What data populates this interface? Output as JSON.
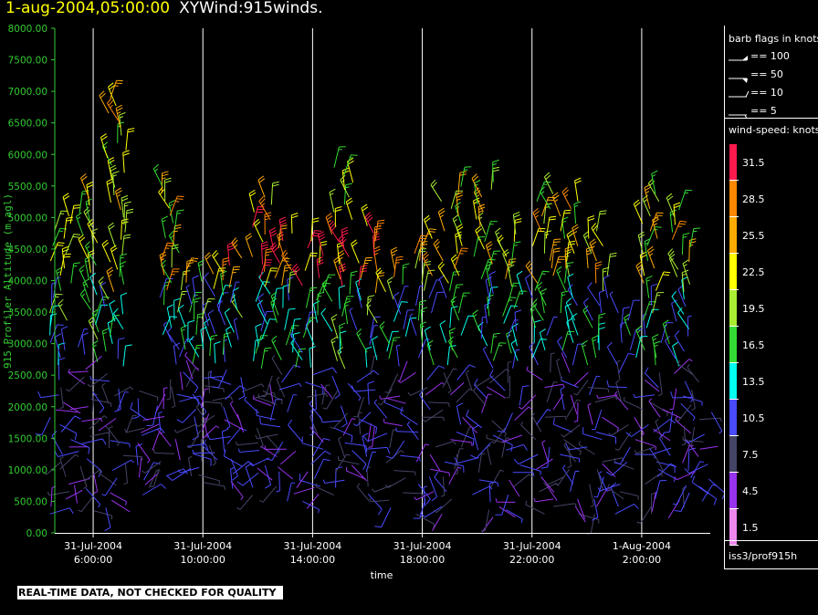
{
  "title": {
    "date": "1-aug-2004,05:00:00",
    "name": "XYWind:915winds."
  },
  "footnote": "REAL-TIME DATA, NOT CHECKED FOR QUALITY",
  "legend": {
    "barb_title": "barb flags in knots",
    "barb_items": [
      "== 100",
      "== 50",
      "== 10",
      "== 5"
    ],
    "speed_title": "wind-speed: knots",
    "speed_labels": [
      "31.5",
      "28.5",
      "25.5",
      "22.5",
      "19.5",
      "16.5",
      "13.5",
      "10.5",
      "7.5",
      "4.5",
      "1.5"
    ],
    "colors": [
      "#ff1a4d",
      "#ff8800",
      "#ffaa00",
      "#ffff00",
      "#aaee33",
      "#33dd33",
      "#00ffee",
      "#4a4aff",
      "#444466",
      "#9933ee",
      "#ee88ee"
    ],
    "source": "iss3/prof915h"
  },
  "chart_data": {
    "type": "scatter",
    "title": "XYWind:915winds.",
    "xlabel": "time",
    "ylabel": "915 Profiler Altitude (m agl)",
    "ylim": [
      0,
      8000
    ],
    "yticks": [
      "0.00",
      "500.00",
      "1000.00",
      "1500.00",
      "2000.00",
      "2500.00",
      "3000.00",
      "3500.00",
      "4000.00",
      "4500.00",
      "5000.00",
      "5500.00",
      "6000.00",
      "6500.00",
      "7000.00",
      "7500.00",
      "8000.00"
    ],
    "xlim_hours": [
      4.6,
      28.5
    ],
    "xticks": [
      {
        "hour": 6,
        "date": "31-Jul-2004",
        "time": "6:00:00"
      },
      {
        "hour": 10,
        "date": "31-Jul-2004",
        "time": "10:00:00"
      },
      {
        "hour": 14,
        "date": "31-Jul-2004",
        "time": "14:00:00"
      },
      {
        "hour": 18,
        "date": "31-Jul-2004",
        "time": "18:00:00"
      },
      {
        "hour": 22,
        "date": "31-Jul-2004",
        "time": "22:00:00"
      },
      {
        "hour": 26,
        "date": "1-Aug-2004",
        "time": "2:00:00"
      }
    ],
    "grid": "vertical",
    "profiles": [
      {
        "hour": 4.8,
        "min_alt": 300,
        "max_alt": 5050
      },
      {
        "hour": 5.8,
        "min_alt": 350,
        "max_alt": 5400
      },
      {
        "hour": 6.8,
        "min_alt": 400,
        "max_alt": 6900
      },
      {
        "hour": 8.0,
        "min_alt": 600,
        "max_alt": 2300
      },
      {
        "hour": 8.8,
        "min_alt": 900,
        "max_alt": 5600
      },
      {
        "hour": 9.6,
        "min_alt": 900,
        "max_alt": 4200
      },
      {
        "hour": 10.2,
        "min_alt": 800,
        "max_alt": 4200
      },
      {
        "hour": 11.1,
        "min_alt": 700,
        "max_alt": 4400
      },
      {
        "hour": 12.2,
        "min_alt": 600,
        "max_alt": 5400
      },
      {
        "hour": 13.0,
        "min_alt": 500,
        "max_alt": 4800
      },
      {
        "hour": 14.0,
        "min_alt": 500,
        "max_alt": 4700
      },
      {
        "hour": 15.1,
        "min_alt": 600,
        "max_alt": 5800
      },
      {
        "hour": 16.0,
        "min_alt": 500,
        "max_alt": 4900
      },
      {
        "hour": 17.0,
        "min_alt": 400,
        "max_alt": 4200
      },
      {
        "hour": 18.1,
        "min_alt": 300,
        "max_alt": 4700
      },
      {
        "hour": 19.1,
        "min_alt": 300,
        "max_alt": 5500
      },
      {
        "hour": 20.2,
        "min_alt": 250,
        "max_alt": 5600
      },
      {
        "hour": 21.3,
        "min_alt": 250,
        "max_alt": 4800
      },
      {
        "hour": 22.4,
        "min_alt": 300,
        "max_alt": 5400
      },
      {
        "hour": 23.4,
        "min_alt": 300,
        "max_alt": 5300
      },
      {
        "hour": 24.4,
        "min_alt": 300,
        "max_alt": 4800
      },
      {
        "hour": 25.4,
        "min_alt": 300,
        "max_alt": 3600
      },
      {
        "hour": 26.4,
        "min_alt": 300,
        "max_alt": 5400
      },
      {
        "hour": 27.4,
        "min_alt": 400,
        "max_alt": 5200
      },
      {
        "hour": 28.2,
        "min_alt": 500,
        "max_alt": 2600
      }
    ]
  }
}
